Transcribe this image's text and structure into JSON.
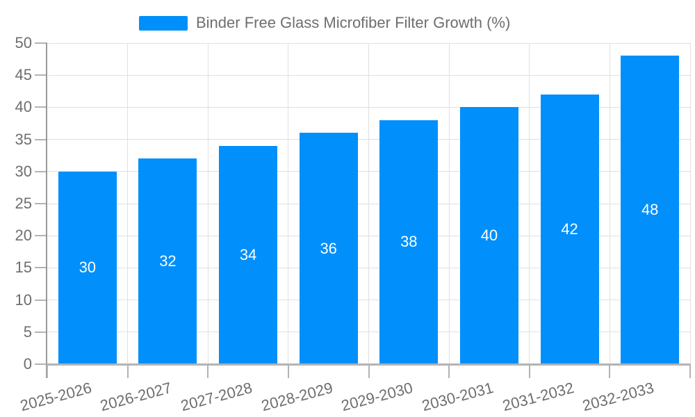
{
  "chart_data": {
    "type": "bar",
    "title": "Binder Free Glass Microfiber Filter Growth (%)",
    "series_name": "Binder Free Glass Microfiber Filter Growth (%)",
    "categories": [
      "2025-2026",
      "2026-2027",
      "2027-2028",
      "2028-2029",
      "2029-2030",
      "2030-2031",
      "2031-2032",
      "2032-2033"
    ],
    "values": [
      30,
      32,
      34,
      36,
      38,
      40,
      42,
      48
    ],
    "bar_value_labels": [
      "30",
      "32",
      "34",
      "36",
      "38",
      "40",
      "42",
      "48"
    ],
    "ylim": [
      0,
      50
    ],
    "yticks": [
      0,
      5,
      10,
      15,
      20,
      25,
      30,
      35,
      40,
      45,
      50
    ],
    "xlabel": "",
    "ylabel": "",
    "grid": true,
    "legend_position": "top",
    "colors": {
      "bar": "#008FFB",
      "bar_value_text": "#ffffff",
      "axis_text": "#6e6e6e",
      "grid_line": "#e0e0e0",
      "axis_line": "#9a9a9a",
      "tick_line": "#b3b3b3",
      "background": "#ffffff"
    }
  }
}
